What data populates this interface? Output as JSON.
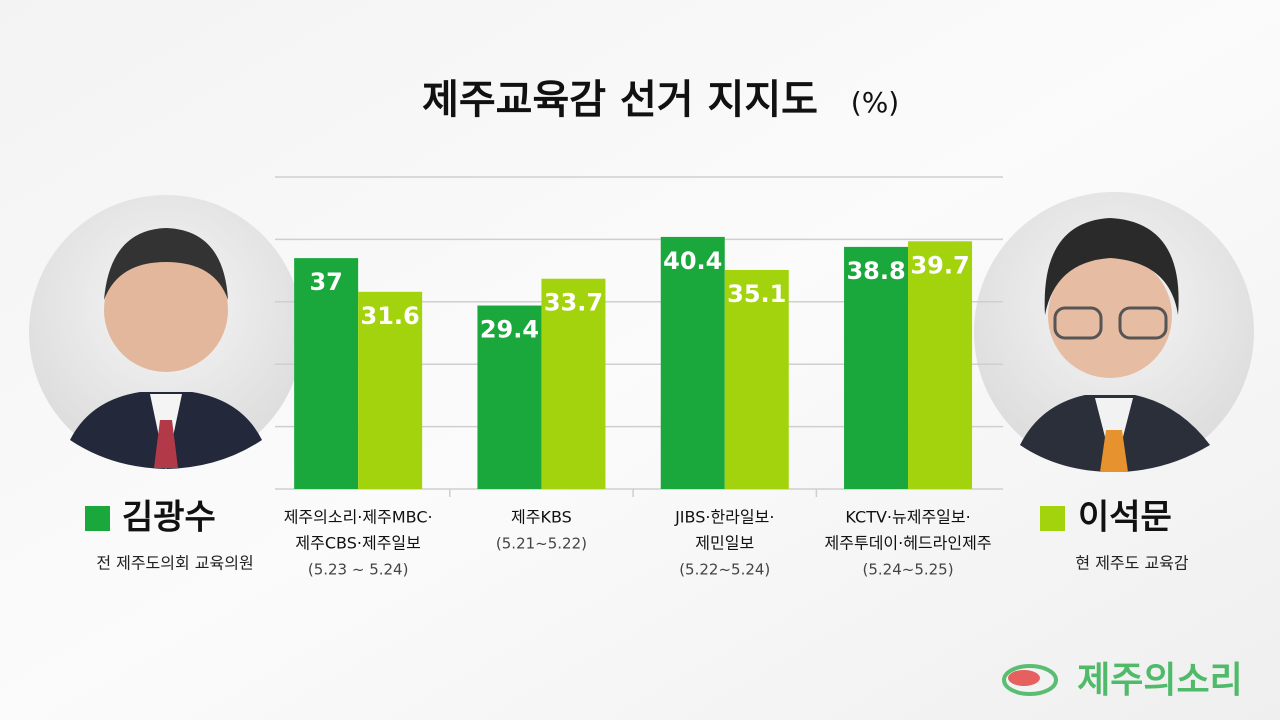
{
  "chart_data": {
    "type": "bar",
    "title": "제주교육감 선거 지지도",
    "unit": "(%)",
    "categories": [
      [
        "제주의소리·제주MBC·",
        "제주CBS·제주일보"
      ],
      [
        "제주KBS"
      ],
      [
        "JIBS·한라일보·",
        "제민일보"
      ],
      [
        "KCTV·뉴제주일보·",
        "제주투데이·헤드라인제주"
      ]
    ],
    "periods": [
      "(5.23 ~ 5.24)",
      "(5.21~5.22)",
      "(5.22~5.24)",
      "(5.24~5.25)"
    ],
    "series": [
      {
        "name": "김광수",
        "role": "전 제주도의회 교육의원",
        "color": "#1aa83c",
        "values": [
          37,
          29.4,
          40.4,
          38.8
        ]
      },
      {
        "name": "이석문",
        "role": "현 제주도 교육감",
        "color": "#a3d30c",
        "values": [
          31.6,
          33.7,
          35.1,
          39.7
        ]
      }
    ],
    "ylim": [
      0,
      50
    ],
    "yticks": [
      0,
      10,
      20,
      30,
      40,
      50
    ],
    "grid": true,
    "source": "제주의소리"
  }
}
